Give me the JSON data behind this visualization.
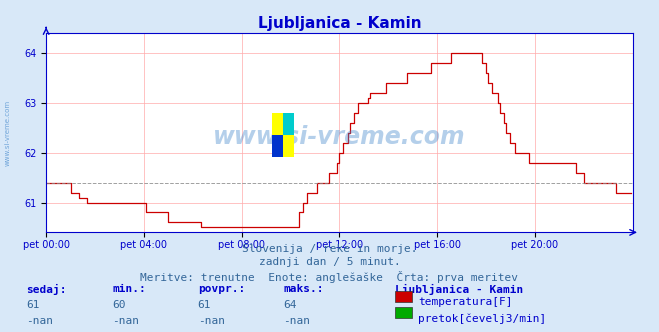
{
  "title": "Ljubljanica - Kamin",
  "title_color": "#0000cc",
  "background_color": "#d8e8f8",
  "plot_background": "#ffffff",
  "grid_color": "#ffaaaa",
  "axis_color": "#0000cc",
  "line_color": "#cc0000",
  "dashed_line_color": "#888888",
  "dashed_line_value": 61.4,
  "ylim": [
    60.4,
    64.4
  ],
  "yticks": [
    61,
    62,
    63,
    64
  ],
  "watermark_text": "www.si-vreme.com",
  "watermark_color": "#4488cc",
  "subtitle_lines": [
    "Slovenija / reke in morje.",
    "zadnji dan / 5 minut.",
    "Meritve: trenutne  Enote: anglešaške  Črta: prva meritev"
  ],
  "subtitle_color": "#336699",
  "table_headers": [
    "sedaj:",
    "min.:",
    "povpr.:",
    "maks.:"
  ],
  "table_values_row1": [
    "61",
    "60",
    "61",
    "64"
  ],
  "table_values_row2": [
    "-nan",
    "-nan",
    "-nan",
    "-nan"
  ],
  "legend_title": "Ljubljanica - Kamin",
  "legend_entries": [
    "temperatura[F]",
    "pretok[čevelj3/min]"
  ],
  "legend_colors": [
    "#cc0000",
    "#00aa00"
  ],
  "table_label_color": "#0000cc",
  "table_value_color": "#336699",
  "xtick_labels": [
    "pet 00:00",
    "pet 04:00",
    "pet 08:00",
    "pet 12:00",
    "pet 16:00",
    "pet 20:00"
  ],
  "xtick_positions": [
    0,
    48,
    96,
    144,
    192,
    240
  ],
  "total_points": 288,
  "temperature_data": [
    61.4,
    61.4,
    61.4,
    61.4,
    61.4,
    61.4,
    61.4,
    61.4,
    61.4,
    61.4,
    61.4,
    61.4,
    61.2,
    61.2,
    61.2,
    61.2,
    61.1,
    61.1,
    61.1,
    61.1,
    61.0,
    61.0,
    61.0,
    61.0,
    61.0,
    61.0,
    61.0,
    61.0,
    61.0,
    61.0,
    61.0,
    61.0,
    61.0,
    61.0,
    61.0,
    61.0,
    61.0,
    61.0,
    61.0,
    61.0,
    61.0,
    61.0,
    61.0,
    61.0,
    61.0,
    61.0,
    61.0,
    61.0,
    61.0,
    60.8,
    60.8,
    60.8,
    60.8,
    60.8,
    60.8,
    60.8,
    60.8,
    60.8,
    60.8,
    60.8,
    60.6,
    60.6,
    60.6,
    60.6,
    60.6,
    60.6,
    60.6,
    60.6,
    60.6,
    60.6,
    60.6,
    60.6,
    60.6,
    60.6,
    60.6,
    60.6,
    60.5,
    60.5,
    60.5,
    60.5,
    60.5,
    60.5,
    60.5,
    60.5,
    60.5,
    60.5,
    60.5,
    60.5,
    60.5,
    60.5,
    60.5,
    60.5,
    60.5,
    60.5,
    60.5,
    60.5,
    60.5,
    60.5,
    60.5,
    60.5,
    60.5,
    60.5,
    60.5,
    60.5,
    60.5,
    60.5,
    60.5,
    60.5,
    60.5,
    60.5,
    60.5,
    60.5,
    60.5,
    60.5,
    60.5,
    60.5,
    60.5,
    60.5,
    60.5,
    60.5,
    60.5,
    60.5,
    60.5,
    60.5,
    60.8,
    60.8,
    61.0,
    61.0,
    61.2,
    61.2,
    61.2,
    61.2,
    61.2,
    61.4,
    61.4,
    61.4,
    61.4,
    61.4,
    61.4,
    61.6,
    61.6,
    61.6,
    61.6,
    61.8,
    62.0,
    62.0,
    62.2,
    62.2,
    62.4,
    62.6,
    62.6,
    62.8,
    62.8,
    63.0,
    63.0,
    63.0,
    63.0,
    63.0,
    63.1,
    63.2,
    63.2,
    63.2,
    63.2,
    63.2,
    63.2,
    63.2,
    63.2,
    63.4,
    63.4,
    63.4,
    63.4,
    63.4,
    63.4,
    63.4,
    63.4,
    63.4,
    63.4,
    63.6,
    63.6,
    63.6,
    63.6,
    63.6,
    63.6,
    63.6,
    63.6,
    63.6,
    63.6,
    63.6,
    63.6,
    63.8,
    63.8,
    63.8,
    63.8,
    63.8,
    63.8,
    63.8,
    63.8,
    63.8,
    63.8,
    64.0,
    64.0,
    64.0,
    64.0,
    64.0,
    64.0,
    64.0,
    64.0,
    64.0,
    64.0,
    64.0,
    64.0,
    64.0,
    64.0,
    64.0,
    63.8,
    63.8,
    63.6,
    63.4,
    63.4,
    63.2,
    63.2,
    63.2,
    63.0,
    62.8,
    62.8,
    62.6,
    62.4,
    62.4,
    62.2,
    62.2,
    62.0,
    62.0,
    62.0,
    62.0,
    62.0,
    62.0,
    62.0,
    61.8,
    61.8,
    61.8,
    61.8,
    61.8,
    61.8,
    61.8,
    61.8,
    61.8,
    61.8,
    61.8,
    61.8,
    61.8,
    61.8,
    61.8,
    61.8,
    61.8,
    61.8,
    61.8,
    61.8,
    61.8,
    61.8,
    61.8,
    61.6,
    61.6,
    61.6,
    61.6,
    61.4,
    61.4,
    61.4,
    61.4,
    61.4,
    61.4,
    61.4,
    61.4,
    61.4,
    61.4,
    61.4,
    61.4,
    61.4,
    61.4,
    61.4,
    61.4,
    61.2,
    61.2,
    61.2,
    61.2,
    61.2,
    61.2,
    61.2,
    61.2
  ]
}
